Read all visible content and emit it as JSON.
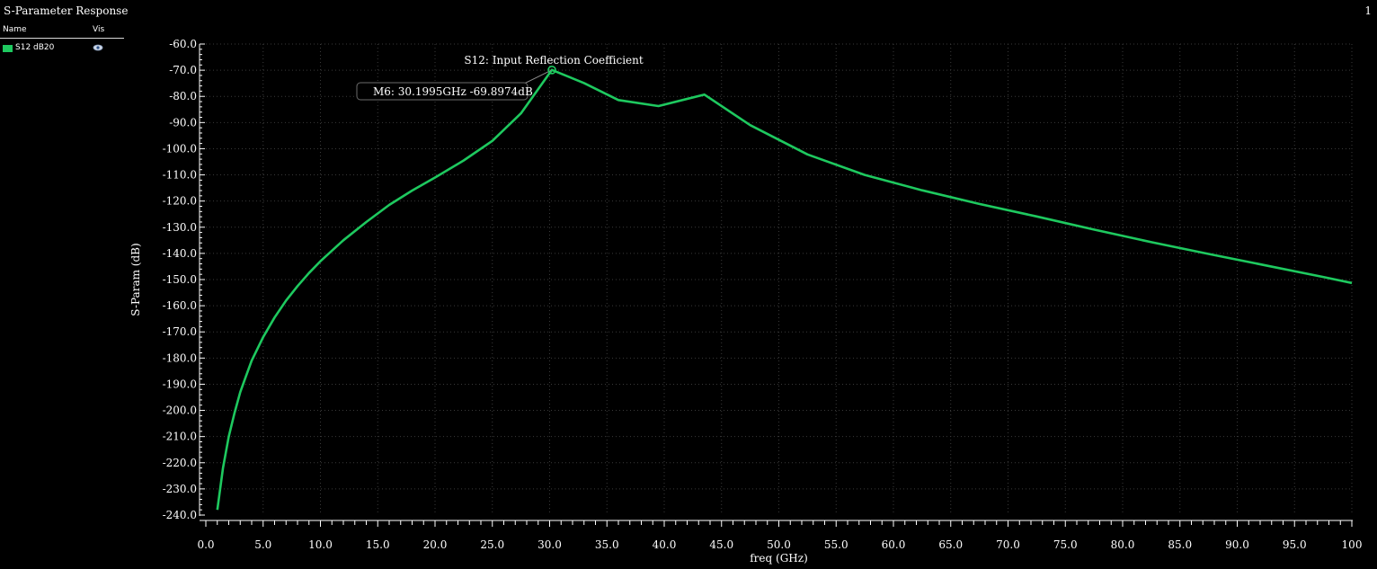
{
  "window": {
    "title": "S-Parameter Response",
    "subwindow_number": "1"
  },
  "legend": {
    "header_name": "Name",
    "header_vis": "Vis",
    "entries": [
      {
        "label": "S12 dB20",
        "color": "#1ec95f",
        "visible_icon": "eye-icon"
      }
    ]
  },
  "colors": {
    "background": "#000000",
    "trace": "#1ec95f",
    "axis": "#ffffff",
    "grid": "#3a3a3a"
  },
  "chart_data": {
    "type": "line",
    "xlabel": "freq (GHz)",
    "ylabel": "S-Param (dB)",
    "xlim": [
      0,
      100
    ],
    "ylim": [
      -240,
      -60
    ],
    "x_ticks": [
      "0.0",
      "5.0",
      "10.0",
      "15.0",
      "20.0",
      "25.0",
      "30.0",
      "35.0",
      "40.0",
      "45.0",
      "50.0",
      "55.0",
      "60.0",
      "65.0",
      "70.0",
      "75.0",
      "80.0",
      "85.0",
      "90.0",
      "95.0",
      "100"
    ],
    "y_ticks": [
      "-60.0",
      "-70.0",
      "-80.0",
      "-90.0",
      "-100.0",
      "-110.0",
      "-120.0",
      "-130.0",
      "-140.0",
      "-150.0",
      "-160.0",
      "-170.0",
      "-180.0",
      "-190.0",
      "-200.0",
      "-210.0",
      "-220.0",
      "-230.0",
      "-240.0"
    ],
    "grid": true,
    "series": [
      {
        "name": "S12 dB20",
        "x": [
          1.0,
          1.5,
          2.0,
          2.5,
          3.0,
          3.5,
          4.0,
          5.0,
          6.0,
          7.0,
          8.0,
          9.0,
          10.0,
          12.0,
          14.0,
          16.0,
          18.0,
          20.0,
          22.5,
          25.0,
          27.5,
          30.2,
          33.0,
          36.0,
          39.5,
          43.5,
          47.5,
          52.5,
          57.5,
          62.5,
          67.5,
          72.5,
          77.5,
          82.5,
          87.5,
          92.5,
          97.5,
          100.0
        ],
        "y": [
          -238,
          -222,
          -210,
          -201,
          -193,
          -187,
          -181,
          -172,
          -164.5,
          -158,
          -152.5,
          -147.5,
          -143,
          -135,
          -128,
          -121.5,
          -116,
          -111,
          -104.5,
          -97,
          -86.5,
          -69.9,
          -74.9,
          -81.4,
          -83.7,
          -79.3,
          -91,
          -102.2,
          -110,
          -115.9,
          -121.1,
          -125.9,
          -130.9,
          -135.7,
          -140.2,
          -144.6,
          -149,
          -151.3
        ]
      }
    ],
    "annotations": [
      {
        "text": "S12: Input Reflection Coefficient",
        "x": 30.2,
        "y": -69.9
      }
    ],
    "marker": {
      "label": "M6: 30.1995GHz -69.8974dB",
      "x": 30.1995,
      "y": -69.8974
    }
  }
}
